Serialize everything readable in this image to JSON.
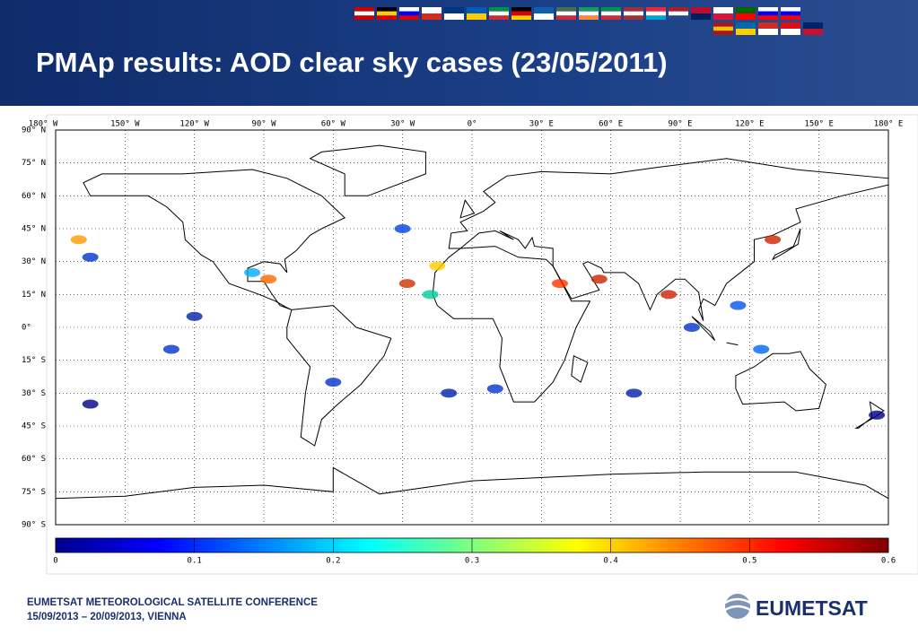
{
  "header": {
    "title": "PMAp results: AOD clear sky cases (23/05/2011)"
  },
  "map": {
    "xlim": [
      -180,
      180
    ],
    "ylim": [
      -90,
      90
    ],
    "grid": true,
    "lon_ticks": [
      {
        "value": -180,
        "label": "180° W"
      },
      {
        "value": -150,
        "label": "150° W"
      },
      {
        "value": -120,
        "label": "120° W"
      },
      {
        "value": -90,
        "label": "90° W"
      },
      {
        "value": -60,
        "label": "60° W"
      },
      {
        "value": -30,
        "label": "30° W"
      },
      {
        "value": 0,
        "label": "0°"
      },
      {
        "value": 30,
        "label": "30° E"
      },
      {
        "value": 60,
        "label": "60° E"
      },
      {
        "value": 90,
        "label": "90° E"
      },
      {
        "value": 120,
        "label": "120° E"
      },
      {
        "value": 150,
        "label": "150° E"
      },
      {
        "value": 180,
        "label": "180° E"
      }
    ],
    "lat_ticks": [
      {
        "value": 90,
        "label": "90° N"
      },
      {
        "value": 75,
        "label": "75° N"
      },
      {
        "value": 60,
        "label": "60° N"
      },
      {
        "value": 45,
        "label": "45° N"
      },
      {
        "value": 30,
        "label": "30° N"
      },
      {
        "value": 15,
        "label": "15° N"
      },
      {
        "value": 0,
        "label": "0°"
      },
      {
        "value": -15,
        "label": "15° S"
      },
      {
        "value": -30,
        "label": "30° S"
      },
      {
        "value": -45,
        "label": "45° S"
      },
      {
        "value": -60,
        "label": "60° S"
      },
      {
        "value": -75,
        "label": "75° S"
      },
      {
        "value": -90,
        "label": "90° S"
      }
    ]
  },
  "colorbar": {
    "lim": [
      0,
      0.6
    ],
    "ticks": [
      0,
      0.1,
      0.2,
      0.3,
      0.4,
      0.5,
      0.6
    ]
  },
  "footer": {
    "conference": "EUMETSAT METEOROLOGICAL SATELLITE CONFERENCE",
    "dates": "15/09/2013 – 20/09/2013, VIENNA",
    "logo": "EUMETSAT"
  }
}
